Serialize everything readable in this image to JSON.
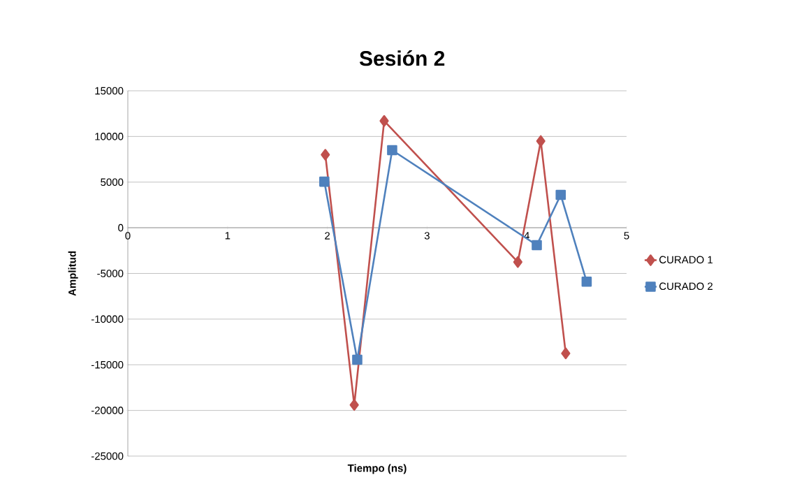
{
  "chart_data": {
    "type": "line",
    "title": "Sesión 2",
    "xlabel": "Tiempo (ns)",
    "ylabel": "Amplitud",
    "xlim": [
      0,
      5
    ],
    "xticks": [
      0,
      1,
      2,
      3,
      4,
      5
    ],
    "ylim": [
      -25000,
      15000
    ],
    "yticks": [
      -25000,
      -20000,
      -15000,
      -10000,
      -5000,
      0,
      5000,
      10000,
      15000
    ],
    "grid": "y",
    "legend": "right",
    "line_style": "solid",
    "series": [
      {
        "name": "CURADO 1",
        "color": "#c0504d",
        "marker": "diamond",
        "x": [
          1.98,
          2.27,
          2.57,
          3.91,
          4.14,
          4.39
        ],
        "values": [
          8000,
          -19400,
          11700,
          -3750,
          9500,
          -13750
        ]
      },
      {
        "name": "CURADO 2",
        "color": "#4f81bd",
        "marker": "square",
        "x": [
          1.97,
          2.3,
          2.65,
          4.1,
          4.34,
          4.6
        ],
        "values": [
          5050,
          -14450,
          8500,
          -1900,
          3600,
          -5900
        ]
      }
    ]
  }
}
